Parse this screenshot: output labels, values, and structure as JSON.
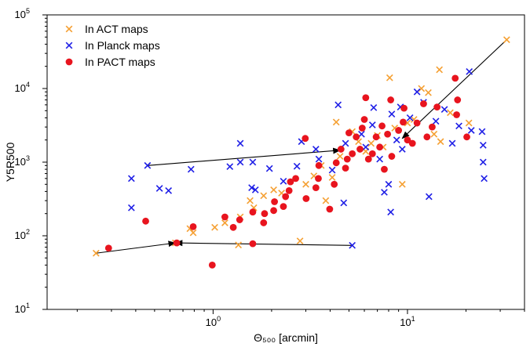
{
  "chart_data": {
    "type": "scatter",
    "xlabel": "Θ₅₀₀ [arcmin]",
    "ylabel": "Y5R500",
    "xscale": "log",
    "yscale": "log",
    "xlim": [
      0.14,
      40
    ],
    "ylim": [
      10,
      100000
    ],
    "grid": false,
    "legend_position": "top-left",
    "x_ticks": [
      {
        "value": 1,
        "base": "10",
        "exp": "0"
      },
      {
        "value": 10,
        "base": "10",
        "exp": "1"
      }
    ],
    "y_ticks": [
      {
        "value": 10,
        "base": "10",
        "exp": "1"
      },
      {
        "value": 100,
        "base": "10",
        "exp": "2"
      },
      {
        "value": 1000,
        "base": "10",
        "exp": "3"
      },
      {
        "value": 10000,
        "base": "10",
        "exp": "4"
      },
      {
        "value": 100000,
        "base": "10",
        "exp": "5"
      }
    ],
    "series": [
      {
        "name": "In ACT maps",
        "marker": "x",
        "color": "#f5a033",
        "points": [
          [
            0.25,
            58
          ],
          [
            0.64,
            80
          ],
          [
            0.76,
            125
          ],
          [
            0.79,
            110
          ],
          [
            1.02,
            130
          ],
          [
            1.15,
            150
          ],
          [
            1.35,
            75
          ],
          [
            1.38,
            180
          ],
          [
            1.55,
            300
          ],
          [
            1.62,
            240
          ],
          [
            1.82,
            350
          ],
          [
            2.05,
            420
          ],
          [
            2.25,
            380
          ],
          [
            2.8,
            85
          ],
          [
            3.0,
            500
          ],
          [
            3.3,
            650
          ],
          [
            3.6,
            900
          ],
          [
            3.8,
            300
          ],
          [
            4.1,
            620
          ],
          [
            4.3,
            3500
          ],
          [
            4.5,
            1200
          ],
          [
            5.2,
            2600
          ],
          [
            5.6,
            1900
          ],
          [
            6.1,
            1400
          ],
          [
            6.5,
            1800
          ],
          [
            7.0,
            2300
          ],
          [
            7.5,
            1600
          ],
          [
            8.1,
            14000
          ],
          [
            8.6,
            2900
          ],
          [
            9.4,
            500
          ],
          [
            10.0,
            3400
          ],
          [
            10.8,
            3800
          ],
          [
            11.8,
            10000
          ],
          [
            12.8,
            8800
          ],
          [
            13.7,
            2400
          ],
          [
            14.6,
            18000
          ],
          [
            14.8,
            1900
          ],
          [
            16.6,
            4700
          ],
          [
            20.7,
            3400
          ],
          [
            32.4,
            46000
          ]
        ]
      },
      {
        "name": "In Planck maps",
        "marker": "x",
        "color": "#1f1fe6",
        "points": [
          [
            0.38,
            600
          ],
          [
            0.38,
            240
          ],
          [
            0.46,
            900
          ],
          [
            0.53,
            440
          ],
          [
            0.59,
            410
          ],
          [
            0.77,
            800
          ],
          [
            1.22,
            870
          ],
          [
            1.38,
            1800
          ],
          [
            1.38,
            1000
          ],
          [
            1.58,
            450
          ],
          [
            1.6,
            1000
          ],
          [
            1.65,
            420
          ],
          [
            1.95,
            820
          ],
          [
            2.3,
            550
          ],
          [
            2.7,
            880
          ],
          [
            2.85,
            1900
          ],
          [
            3.38,
            1500
          ],
          [
            3.5,
            1100
          ],
          [
            4.1,
            780
          ],
          [
            4.4,
            6000
          ],
          [
            4.7,
            280
          ],
          [
            4.8,
            1800
          ],
          [
            5.2,
            74
          ],
          [
            5.8,
            2400
          ],
          [
            6.1,
            1600
          ],
          [
            6.6,
            3200
          ],
          [
            6.7,
            5500
          ],
          [
            7.2,
            1100
          ],
          [
            7.6,
            390
          ],
          [
            8.0,
            500
          ],
          [
            8.2,
            210
          ],
          [
            8.3,
            4500
          ],
          [
            8.8,
            2000
          ],
          [
            9.2,
            5600
          ],
          [
            9.4,
            1500
          ],
          [
            10.3,
            4000
          ],
          [
            11.2,
            9000
          ],
          [
            12.1,
            6500
          ],
          [
            12.9,
            340
          ],
          [
            14.0,
            3600
          ],
          [
            15.5,
            5200
          ],
          [
            17.0,
            1800
          ],
          [
            18.4,
            3100
          ],
          [
            20.8,
            17000
          ],
          [
            21.3,
            2700
          ],
          [
            24.2,
            2600
          ],
          [
            24.5,
            1700
          ],
          [
            24.5,
            1000
          ],
          [
            24.8,
            600
          ]
        ]
      },
      {
        "name": "In PACT maps",
        "marker": "o",
        "color": "#e8141e",
        "points": [
          [
            0.29,
            68
          ],
          [
            0.45,
            158
          ],
          [
            0.65,
            80
          ],
          [
            0.79,
            133
          ],
          [
            0.99,
            40
          ],
          [
            1.15,
            180
          ],
          [
            1.27,
            130
          ],
          [
            1.37,
            165
          ],
          [
            1.6,
            210
          ],
          [
            1.6,
            78
          ],
          [
            1.82,
            150
          ],
          [
            1.84,
            200
          ],
          [
            2.05,
            220
          ],
          [
            2.07,
            290
          ],
          [
            2.3,
            250
          ],
          [
            2.36,
            340
          ],
          [
            2.46,
            410
          ],
          [
            2.5,
            540
          ],
          [
            2.66,
            600
          ],
          [
            2.98,
            2100
          ],
          [
            3.01,
            320
          ],
          [
            3.38,
            450
          ],
          [
            3.48,
            600
          ],
          [
            3.5,
            900
          ],
          [
            3.98,
            230
          ],
          [
            4.2,
            500
          ],
          [
            4.3,
            980
          ],
          [
            4.55,
            1500
          ],
          [
            4.8,
            830
          ],
          [
            4.9,
            1100
          ],
          [
            5.2,
            1300
          ],
          [
            5.45,
            2200
          ],
          [
            5.7,
            1500
          ],
          [
            5.85,
            2900
          ],
          [
            6.1,
            7500
          ],
          [
            6.3,
            1100
          ],
          [
            6.6,
            1300
          ],
          [
            6.9,
            2200
          ],
          [
            7.2,
            1600
          ],
          [
            7.4,
            3100
          ],
          [
            7.6,
            800
          ],
          [
            7.9,
            2400
          ],
          [
            8.2,
            7000
          ],
          [
            8.3,
            1200
          ],
          [
            9.0,
            2700
          ],
          [
            9.6,
            5400
          ],
          [
            10.0,
            2000
          ],
          [
            10.6,
            1800
          ],
          [
            11.2,
            3400
          ],
          [
            12.1,
            6200
          ],
          [
            12.6,
            2200
          ],
          [
            13.4,
            3000
          ],
          [
            14.2,
            5600
          ],
          [
            17.6,
            13800
          ],
          [
            17.9,
            4400
          ],
          [
            18.1,
            7000
          ],
          [
            20.2,
            2200
          ],
          [
            9.5,
            3500
          ],
          [
            6.0,
            3800
          ],
          [
            5.0,
            2500
          ]
        ]
      }
    ],
    "arrows": [
      {
        "from": [
          0.46,
          900
        ],
        "to": [
          4.5,
          1450
        ]
      },
      {
        "from": [
          0.25,
          58
        ],
        "to": [
          0.64,
          80
        ]
      },
      {
        "from": [
          5.2,
          74
        ],
        "to": [
          0.64,
          80
        ]
      },
      {
        "from": [
          32.4,
          46000
        ],
        "to": [
          9.4,
          2100
        ]
      }
    ],
    "legend": [
      {
        "label": "In ACT maps"
      },
      {
        "label": "In Planck maps"
      },
      {
        "label": "In PACT maps"
      }
    ]
  }
}
